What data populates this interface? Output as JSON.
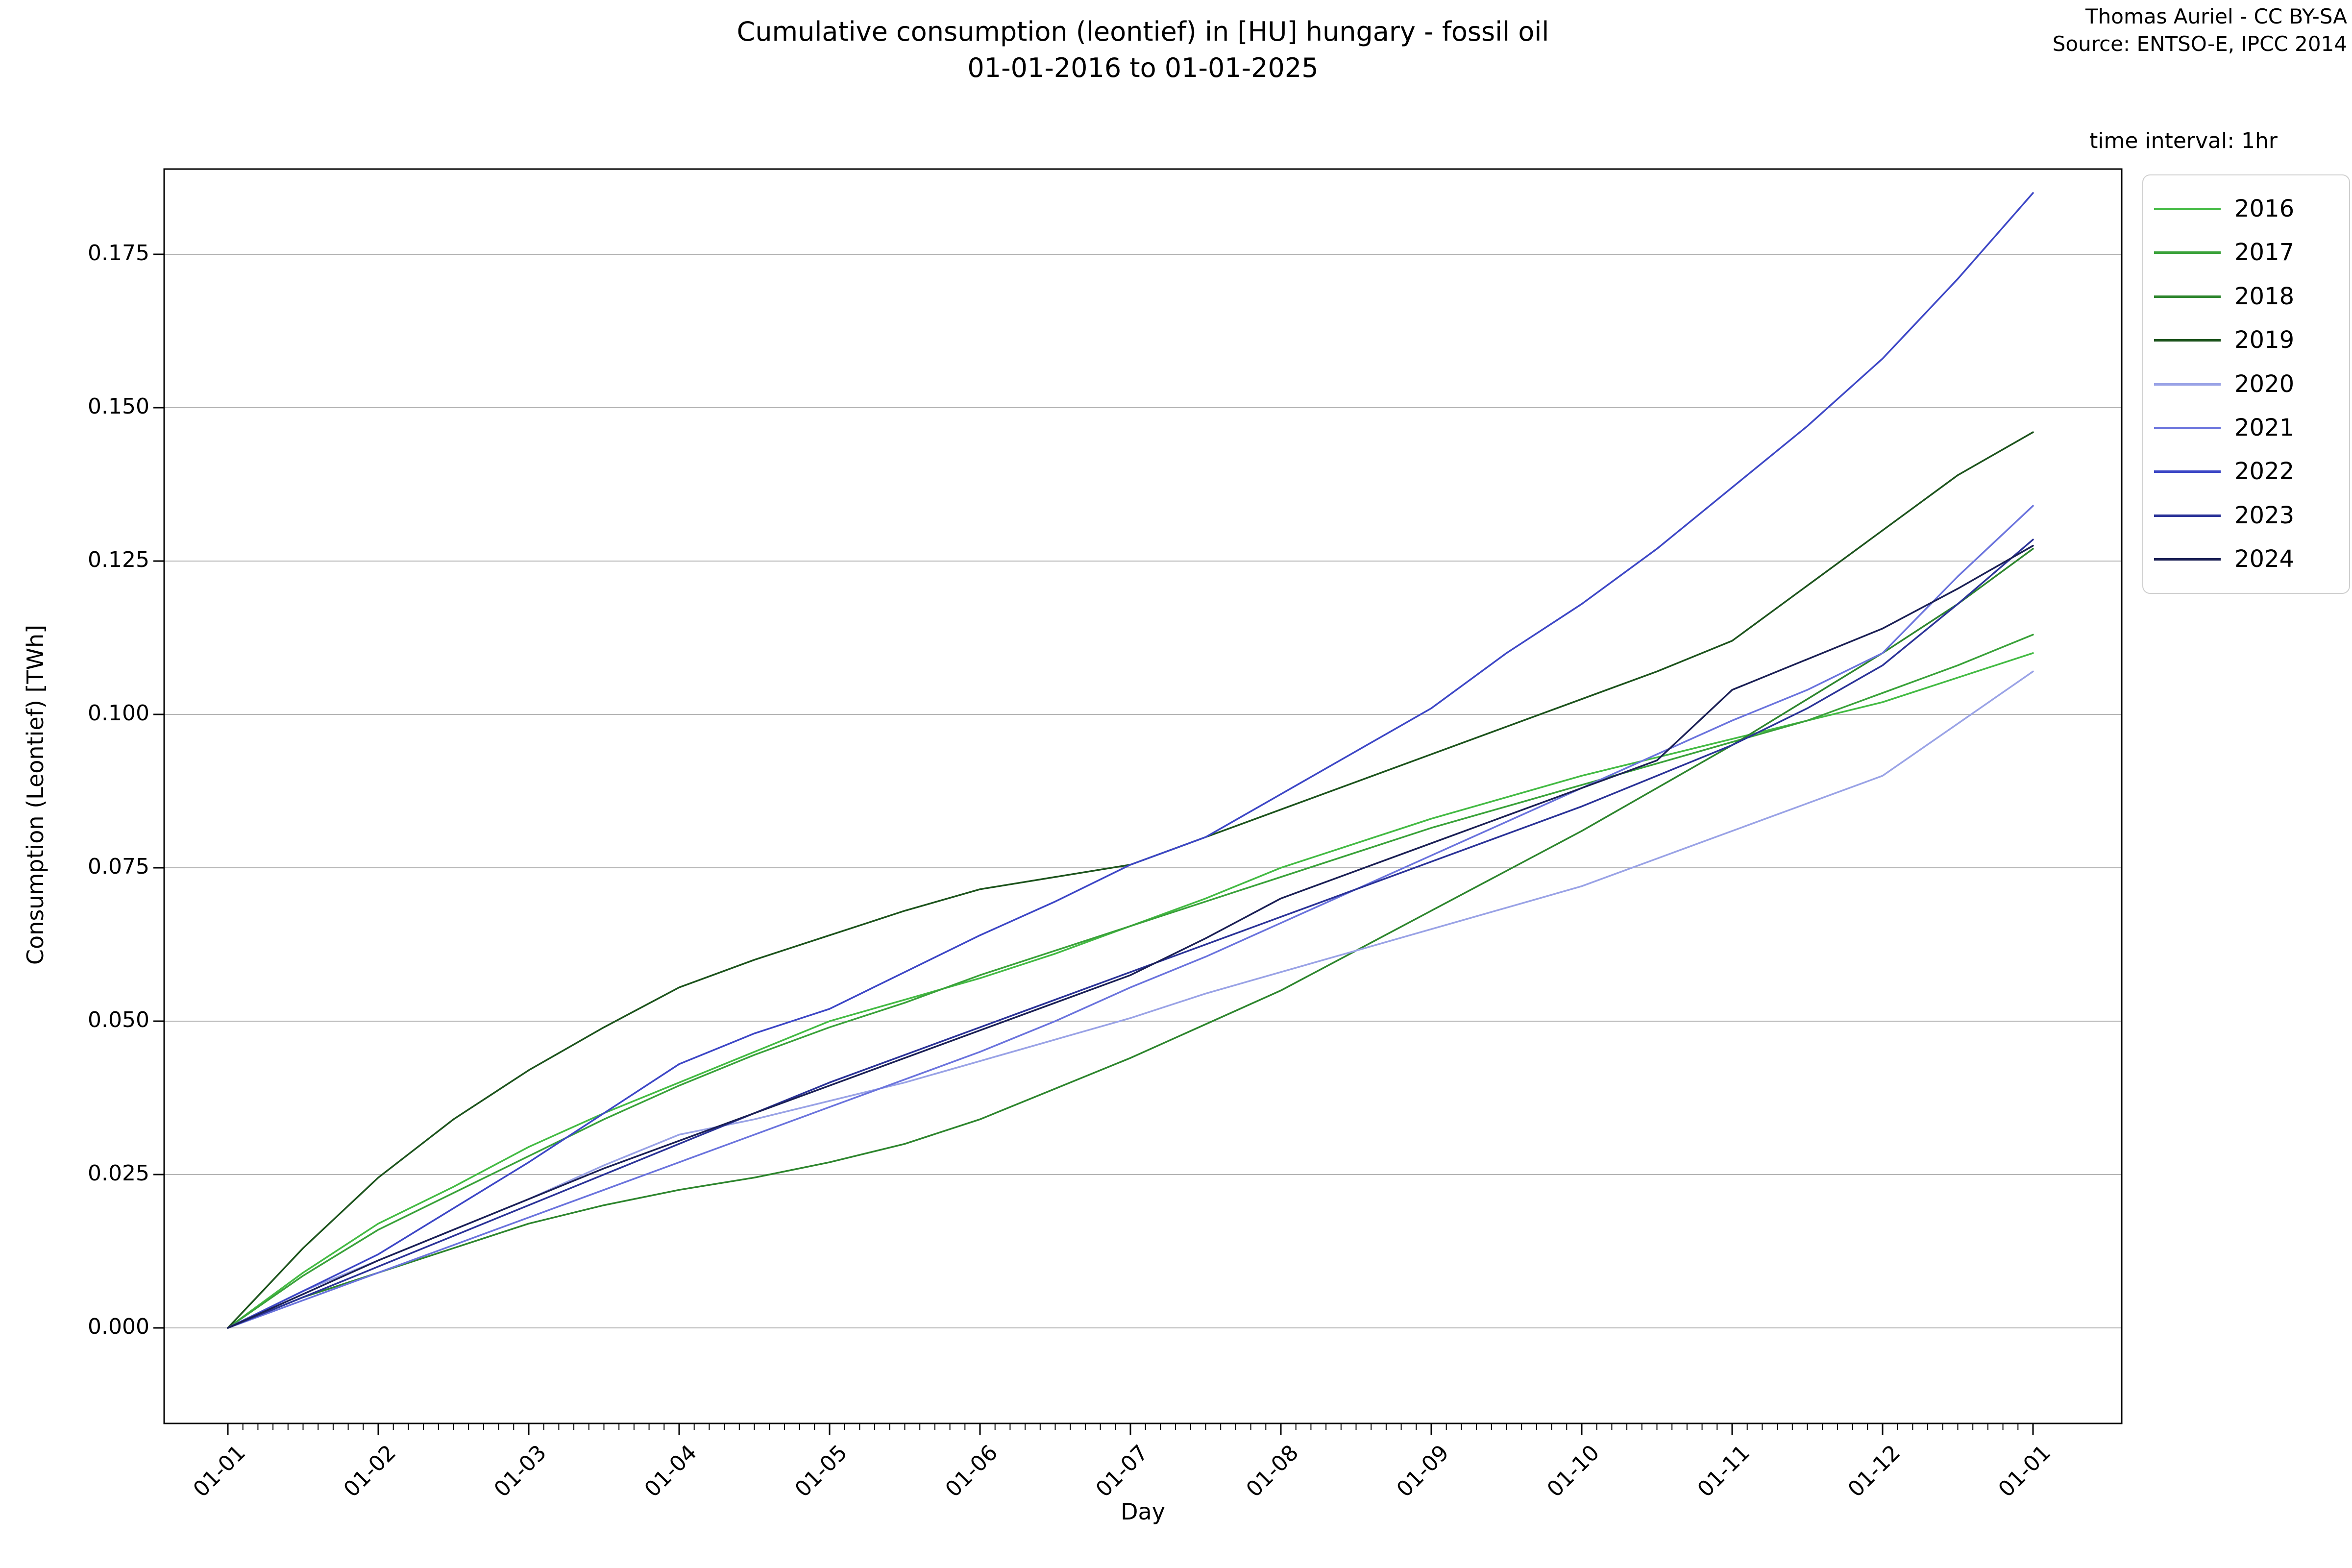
{
  "title": {
    "line1": "Cumulative consumption (leontief) in [HU] hungary - fossil oil",
    "line2": "01-01-2016 to 01-01-2025"
  },
  "attribution": {
    "line1": "Thomas Auriel - CC BY-SA",
    "line2": "Source: ENTSO-E, IPCC 2014"
  },
  "plot_note": "time interval: 1hr",
  "chart_data": {
    "type": "line",
    "title": "Cumulative consumption (leontief) in [HU] hungary - fossil oil 01-01-2016 to 01-01-2025",
    "xlabel": "Day",
    "ylabel": "Consumption (Leontief) [TWh]",
    "x_tick_labels": [
      "01-01",
      "01-02",
      "01-03",
      "01-04",
      "01-05",
      "01-06",
      "01-07",
      "01-08",
      "01-09",
      "01-10",
      "01-11",
      "01-12",
      "01-01"
    ],
    "y_tick_labels": [
      "0.000",
      "0.025",
      "0.050",
      "0.075",
      "0.100",
      "0.125",
      "0.150",
      "0.175"
    ],
    "y_tick_values": [
      0.0,
      0.025,
      0.05,
      0.075,
      0.1,
      0.125,
      0.15,
      0.175
    ],
    "ylim": [
      -0.015,
      0.189
    ],
    "grid": "horizontal",
    "legend_position": "outside upper right",
    "x_months": [
      0,
      0.5,
      1,
      1.5,
      2,
      2.5,
      3,
      3.5,
      4,
      4.5,
      5,
      5.5,
      6,
      6.5,
      7,
      7.5,
      8,
      8.5,
      9,
      9.5,
      10,
      10.5,
      11,
      11.5,
      12
    ],
    "series": [
      {
        "name": "2016",
        "color": "#44bb44",
        "values": [
          0,
          0.009,
          0.017,
          0.023,
          0.0295,
          0.035,
          0.04,
          0.045,
          0.05,
          0.0535,
          0.057,
          0.061,
          0.0655,
          0.07,
          0.075,
          0.079,
          0.083,
          0.0865,
          0.09,
          0.093,
          0.096,
          0.099,
          0.102,
          0.106,
          0.11
        ]
      },
      {
        "name": "2017",
        "color": "#3aa23a",
        "values": [
          0,
          0.0085,
          0.016,
          0.022,
          0.028,
          0.034,
          0.0395,
          0.0445,
          0.049,
          0.053,
          0.0575,
          0.0615,
          0.0655,
          0.0695,
          0.0735,
          0.0775,
          0.0815,
          0.085,
          0.0885,
          0.092,
          0.0955,
          0.099,
          0.1035,
          0.108,
          0.113
        ]
      },
      {
        "name": "2018",
        "color": "#2e862e",
        "values": [
          0,
          0.005,
          0.009,
          0.013,
          0.017,
          0.02,
          0.0225,
          0.0245,
          0.027,
          0.03,
          0.034,
          0.039,
          0.044,
          0.0495,
          0.055,
          0.0615,
          0.068,
          0.0745,
          0.081,
          0.088,
          0.095,
          0.1025,
          0.11,
          0.118,
          0.127
        ]
      },
      {
        "name": "2019",
        "color": "#1d541d",
        "values": [
          0,
          0.013,
          0.0245,
          0.034,
          0.042,
          0.049,
          0.0555,
          0.06,
          0.064,
          0.068,
          0.0715,
          0.0735,
          0.0755,
          0.08,
          0.0845,
          0.089,
          0.0935,
          0.098,
          0.1025,
          0.107,
          0.112,
          0.121,
          0.13,
          0.139,
          0.146
        ]
      },
      {
        "name": "2020",
        "color": "#9aa3e6",
        "values": [
          0,
          0.006,
          0.011,
          0.016,
          0.021,
          0.0265,
          0.0315,
          0.034,
          0.037,
          0.04,
          0.0435,
          0.047,
          0.0505,
          0.0545,
          0.058,
          0.0615,
          0.065,
          0.0685,
          0.072,
          0.0765,
          0.081,
          0.0855,
          0.09,
          0.0985,
          0.107
        ]
      },
      {
        "name": "2021",
        "color": "#6b74dd",
        "values": [
          0,
          0.0045,
          0.009,
          0.0135,
          0.018,
          0.0225,
          0.027,
          0.0315,
          0.036,
          0.0405,
          0.045,
          0.05,
          0.0555,
          0.0605,
          0.066,
          0.0715,
          0.077,
          0.0825,
          0.088,
          0.0935,
          0.099,
          0.104,
          0.11,
          0.1225,
          0.134
        ]
      },
      {
        "name": "2022",
        "color": "#3d47c6",
        "values": [
          0,
          0.006,
          0.012,
          0.0195,
          0.027,
          0.035,
          0.043,
          0.048,
          0.052,
          0.058,
          0.064,
          0.0695,
          0.0755,
          0.08,
          0.087,
          0.094,
          0.101,
          0.11,
          0.118,
          0.127,
          0.137,
          0.147,
          0.158,
          0.171,
          0.185
        ]
      },
      {
        "name": "2023",
        "color": "#2b3398",
        "values": [
          0,
          0.005,
          0.01,
          0.015,
          0.02,
          0.025,
          0.03,
          0.035,
          0.04,
          0.0445,
          0.049,
          0.0535,
          0.058,
          0.0625,
          0.067,
          0.0715,
          0.076,
          0.0805,
          0.085,
          0.09,
          0.095,
          0.101,
          0.108,
          0.118,
          0.1285
        ]
      },
      {
        "name": "2024",
        "color": "#1b2055",
        "values": [
          0,
          0.0055,
          0.011,
          0.016,
          0.021,
          0.026,
          0.0305,
          0.035,
          0.0395,
          0.044,
          0.0485,
          0.053,
          0.0575,
          0.0635,
          0.07,
          0.0745,
          0.079,
          0.0835,
          0.088,
          0.0925,
          0.104,
          0.109,
          0.114,
          0.1205,
          0.1275
        ]
      }
    ]
  }
}
